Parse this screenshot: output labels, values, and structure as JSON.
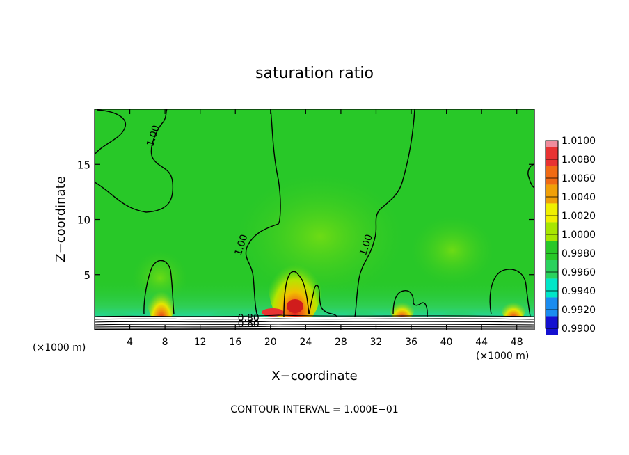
{
  "chart_data": {
    "type": "heatmap",
    "title": "saturation ratio",
    "xlabel": "X−coordinate",
    "ylabel": "Z−coordinate",
    "x_unit_left": "(×1000 m)",
    "x_unit_right": "(×1000 m)",
    "xlim": [
      0,
      50
    ],
    "ylim": [
      0,
      20
    ],
    "x_ticks": [
      4,
      8,
      12,
      16,
      20,
      24,
      28,
      32,
      36,
      40,
      44,
      48
    ],
    "y_ticks": [
      5,
      10,
      15
    ],
    "footer": "CONTOUR INTERVAL = 1.000E−01",
    "contour_labels": [
      {
        "text": "1.00",
        "x": 7,
        "z": 17.5
      },
      {
        "text": "1.00",
        "x": 17,
        "z": 7.6
      },
      {
        "text": "1.00",
        "x": 31.2,
        "z": 7.6
      },
      {
        "text": "0.80",
        "x": 17.5,
        "z": 0.8
      },
      {
        "text": "0.60",
        "x": 17.5,
        "z": 0.25
      }
    ],
    "colorbar": {
      "levels": [
        "1.0100",
        "1.0080",
        "1.0060",
        "1.0040",
        "1.0020",
        "1.0000",
        "0.9980",
        "0.9960",
        "0.9940",
        "0.9920",
        "0.9900"
      ],
      "colors": [
        "#f08c9c",
        "#e83232",
        "#f06a14",
        "#f0a008",
        "#f0f000",
        "#a8e600",
        "#28c828",
        "#2ad25e",
        "#00e6c8",
        "#1a8cf0",
        "#1410d0",
        "#8020b0"
      ]
    }
  }
}
